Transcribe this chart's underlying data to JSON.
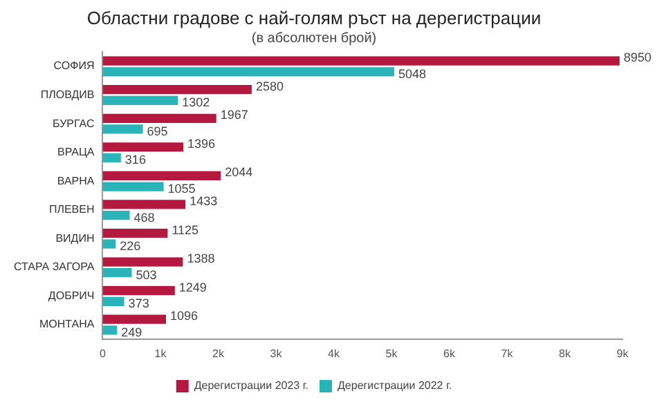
{
  "chart_data": {
    "type": "bar",
    "orientation": "horizontal",
    "title": "Областни градове с най-голям ръст на дерегистрации",
    "subtitle": "(в абсолютен брой)",
    "categories": [
      "СОФИЯ",
      "ПЛОВДИВ",
      "БУРГАС",
      "ВРАЦА",
      "ВАРНА",
      "ПЛЕВЕН",
      "ВИДИН",
      "СТАРА ЗАГОРА",
      "ДОБРИЧ",
      "МОНТАНА"
    ],
    "series": [
      {
        "name": "Дерегистрации 2023 г.",
        "color": "#b5193f",
        "values": [
          8950,
          2580,
          1967,
          1396,
          2044,
          1433,
          1125,
          1388,
          1249,
          1096
        ]
      },
      {
        "name": "Дерегистрации 2022 г.",
        "color": "#2ab3b8",
        "values": [
          5048,
          1302,
          695,
          316,
          1055,
          468,
          226,
          503,
          373,
          249
        ]
      }
    ],
    "xlim": [
      0,
      9000
    ],
    "xticks": [
      {
        "value": 0,
        "label": "0"
      },
      {
        "value": 1000,
        "label": "1k"
      },
      {
        "value": 2000,
        "label": "2k"
      },
      {
        "value": 3000,
        "label": "3k"
      },
      {
        "value": 4000,
        "label": "4k"
      },
      {
        "value": 5000,
        "label": "5k"
      },
      {
        "value": 6000,
        "label": "6k"
      },
      {
        "value": 7000,
        "label": "7k"
      },
      {
        "value": 8000,
        "label": "8k"
      },
      {
        "value": 9000,
        "label": "9k"
      }
    ],
    "grid": false,
    "legend": "bottom",
    "data_labels": true
  }
}
